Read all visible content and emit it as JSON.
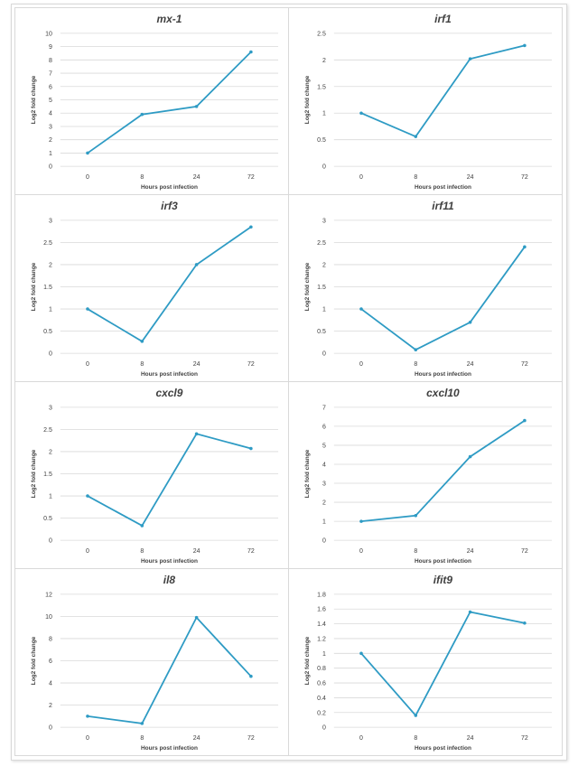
{
  "style": {
    "line_color": "#2e9bc4",
    "grid_color": "#d9d9d9",
    "text_color": "#404040"
  },
  "chart_data": [
    {
      "type": "line",
      "title": "mx-1",
      "xlabel": "Hours post infection",
      "ylabel": "Log2 fold change",
      "categories": [
        "0",
        "8",
        "24",
        "72"
      ],
      "values": [
        1.0,
        3.9,
        4.5,
        8.6
      ],
      "ylim": [
        0,
        10
      ],
      "yticks": [
        "0",
        "1",
        "2",
        "3",
        "4",
        "5",
        "6",
        "7",
        "8",
        "9",
        "10"
      ],
      "grid": true
    },
    {
      "type": "line",
      "title": "irf1",
      "xlabel": "Hours post infection",
      "ylabel": "Log2 fold change",
      "categories": [
        "0",
        "8",
        "24",
        "72"
      ],
      "values": [
        1.0,
        0.56,
        2.02,
        2.27
      ],
      "ylim": [
        0,
        2.5
      ],
      "yticks": [
        "0",
        "0.5",
        "1",
        "1.5",
        "2",
        "2.5"
      ],
      "grid": true
    },
    {
      "type": "line",
      "title": "irf3",
      "xlabel": "Hours post infection",
      "ylabel": "Log2 fold change",
      "categories": [
        "0",
        "8",
        "24",
        "72"
      ],
      "values": [
        1.0,
        0.27,
        2.0,
        2.85
      ],
      "ylim": [
        0,
        3
      ],
      "yticks": [
        "0",
        "0.5",
        "1",
        "1.5",
        "2",
        "2.5",
        "3"
      ],
      "grid": true
    },
    {
      "type": "line",
      "title": "irf11",
      "xlabel": "Hours post infection",
      "ylabel": "Log2 fold change",
      "categories": [
        "0",
        "8",
        "24",
        "72"
      ],
      "values": [
        1.0,
        0.08,
        0.7,
        2.4
      ],
      "ylim": [
        0,
        3
      ],
      "yticks": [
        "0",
        "0.5",
        "1",
        "1.5",
        "2",
        "2.5",
        "3"
      ],
      "grid": true
    },
    {
      "type": "line",
      "title": "cxcl9",
      "xlabel": "Hours post infection",
      "ylabel": "Log2 fold change",
      "categories": [
        "0",
        "8",
        "24",
        "72"
      ],
      "values": [
        1.0,
        0.33,
        2.4,
        2.07
      ],
      "ylim": [
        0,
        3
      ],
      "yticks": [
        "0",
        "0.5",
        "1",
        "1.5",
        "2",
        "2.5",
        "3"
      ],
      "grid": true
    },
    {
      "type": "line",
      "title": "cxcl10",
      "xlabel": "Hours post infection",
      "ylabel": "Log2 fold change",
      "categories": [
        "0",
        "8",
        "24",
        "72"
      ],
      "values": [
        1.0,
        1.3,
        4.4,
        6.3
      ],
      "ylim": [
        0,
        7
      ],
      "yticks": [
        "0",
        "1",
        "2",
        "3",
        "4",
        "5",
        "6",
        "7"
      ],
      "grid": true
    },
    {
      "type": "line",
      "title": "il8",
      "xlabel": "Hours post infection",
      "ylabel": "Log2 fold change",
      "categories": [
        "0",
        "8",
        "24",
        "72"
      ],
      "values": [
        1.0,
        0.35,
        9.9,
        4.6
      ],
      "ylim": [
        0,
        12
      ],
      "yticks": [
        "0",
        "2",
        "4",
        "6",
        "8",
        "10",
        "12"
      ],
      "grid": true
    },
    {
      "type": "line",
      "title": "ifit9",
      "xlabel": "Hours post infection",
      "ylabel": "Log2 fold change",
      "categories": [
        "0",
        "8",
        "24",
        "72"
      ],
      "values": [
        1.0,
        0.16,
        1.56,
        1.41
      ],
      "ylim": [
        0,
        1.8
      ],
      "yticks": [
        "0",
        "0.2",
        "0.4",
        "0.6",
        "0.8",
        "1",
        "1.2",
        "1.4",
        "1.6",
        "1.8"
      ],
      "grid": true
    }
  ]
}
